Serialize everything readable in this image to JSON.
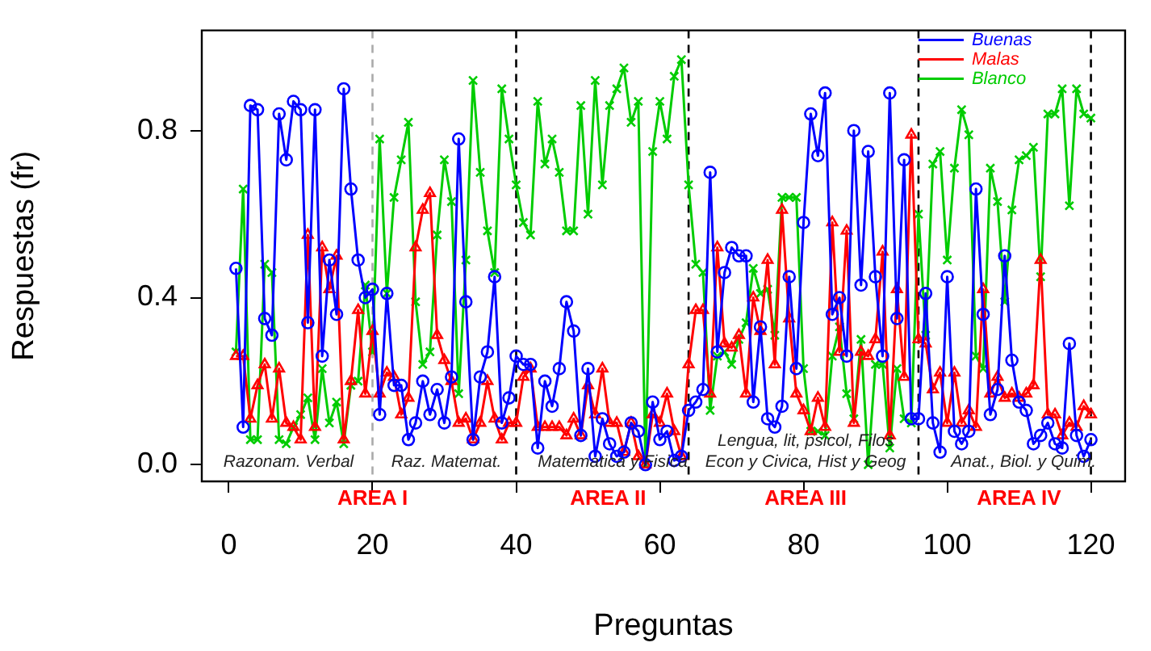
{
  "chart_data": {
    "type": "line",
    "xlabel": "Preguntas",
    "ylabel": "Respuestas (fr)",
    "x": [
      1,
      2,
      3,
      4,
      5,
      6,
      7,
      8,
      9,
      10,
      11,
      12,
      13,
      14,
      15,
      16,
      17,
      18,
      19,
      20,
      21,
      22,
      23,
      24,
      25,
      26,
      27,
      28,
      29,
      30,
      31,
      32,
      33,
      34,
      35,
      36,
      37,
      38,
      39,
      40,
      41,
      42,
      43,
      44,
      45,
      46,
      47,
      48,
      49,
      50,
      51,
      52,
      53,
      54,
      55,
      56,
      57,
      58,
      59,
      60,
      61,
      62,
      63,
      64,
      65,
      66,
      67,
      68,
      69,
      70,
      71,
      72,
      73,
      74,
      75,
      76,
      77,
      78,
      79,
      80,
      81,
      82,
      83,
      84,
      85,
      86,
      87,
      88,
      89,
      90,
      91,
      92,
      93,
      94,
      95,
      96,
      97,
      98,
      99,
      100,
      101,
      102,
      103,
      104,
      105,
      106,
      107,
      108,
      109,
      110,
      111,
      112,
      113,
      114,
      115,
      116,
      117,
      118,
      119,
      120
    ],
    "xlim": [
      -3.76,
      124.76
    ],
    "xticks": [
      0,
      20,
      40,
      60,
      80,
      100,
      120
    ],
    "ylim": [
      -0.04,
      1.04
    ],
    "yticks": [
      {
        "value": 0,
        "label": "0.0"
      },
      {
        "value": 0.4,
        "label": "0.4"
      },
      {
        "value": 0.8,
        "label": "0.8"
      }
    ],
    "grid": false,
    "legend": "top right",
    "line_style": "solid",
    "series": [
      {
        "name": "Buenas",
        "color": "#0000ff",
        "marker": "circle",
        "values": [
          0.47,
          0.09,
          0.86,
          0.85,
          0.35,
          0.31,
          0.84,
          0.73,
          0.87,
          0.85,
          0.34,
          0.85,
          0.26,
          0.49,
          0.36,
          0.9,
          0.66,
          0.49,
          0.4,
          0.42,
          0.12,
          0.41,
          0.19,
          0.19,
          0.06,
          0.1,
          0.2,
          0.12,
          0.18,
          0.1,
          0.21,
          0.78,
          0.39,
          0.06,
          0.21,
          0.27,
          0.45,
          0.1,
          0.16,
          0.26,
          0.24,
          0.24,
          0.04,
          0.2,
          0.14,
          0.23,
          0.39,
          0.32,
          0.07,
          0.23,
          0.02,
          0.11,
          0.05,
          0.02,
          0.03,
          0.1,
          0.08,
          0,
          0.15,
          0.06,
          0.08,
          0.01,
          0.02,
          0.13,
          0.15,
          0.18,
          0.7,
          0.27,
          0.46,
          0.52,
          0.5,
          0.5,
          0.15,
          0.33,
          0.11,
          0.09,
          0.14,
          0.45,
          0.23,
          0.58,
          0.84,
          0.74,
          0.89,
          0.36,
          0.4,
          0.26,
          0.8,
          0.43,
          0.75,
          0.45,
          0.26,
          0.89,
          0.35,
          0.73,
          0.11,
          0.11,
          0.41,
          0.1,
          0.03,
          0.45,
          0.08,
          0.05,
          0.08,
          0.66,
          0.36,
          0.12,
          0.18,
          0.5,
          0.25,
          0.15,
          0.13,
          0.05,
          0.07,
          0.1,
          0.05,
          0.04,
          0.29,
          0.07,
          0.02,
          0.06
        ]
      },
      {
        "name": "Malas",
        "color": "#ff0000",
        "marker": "triangle",
        "values": [
          0.26,
          0.26,
          0.11,
          0.19,
          0.24,
          0.11,
          0.23,
          0.1,
          0.09,
          0.06,
          0.55,
          0.09,
          0.52,
          0.42,
          0.5,
          0.06,
          0.2,
          0.37,
          0.17,
          0.32,
          0.17,
          0.22,
          0.21,
          0.12,
          0.16,
          0.52,
          0.61,
          0.65,
          0.31,
          0.25,
          0.2,
          0.1,
          0.11,
          0.06,
          0.1,
          0.2,
          0.11,
          0.06,
          0.1,
          0.1,
          0.21,
          0.23,
          0.09,
          0.09,
          0.09,
          0.09,
          0.07,
          0.11,
          0.07,
          0.19,
          0.12,
          0.23,
          0.1,
          0.1,
          0.03,
          0.1,
          0.02,
          0,
          0.12,
          0.1,
          0.17,
          0.08,
          0.02,
          0.24,
          0.37,
          0.37,
          0.17,
          0.52,
          0.29,
          0.28,
          0.31,
          0.17,
          0.4,
          0.32,
          0.49,
          0.24,
          0.61,
          0.35,
          0.17,
          0.13,
          0.08,
          0.16,
          0.09,
          0.58,
          0.27,
          0.56,
          0.1,
          0.27,
          0.26,
          0.3,
          0.51,
          0.07,
          0.42,
          0.21,
          0.79,
          0.3,
          0.29,
          0.18,
          0.22,
          0.1,
          0.22,
          0.1,
          0.13,
          0.09,
          0.42,
          0.17,
          0.21,
          0.16,
          0.17,
          0.16,
          0.17,
          0.19,
          0.49,
          0.12,
          0.12,
          0.07,
          0.1,
          0.09,
          0.14,
          0.12
        ]
      },
      {
        "name": "Blanco",
        "color": "#00cc00",
        "marker": "cross",
        "values": [
          0.27,
          0.66,
          0.06,
          0.06,
          0.48,
          0.46,
          0.06,
          0.05,
          0.09,
          0.12,
          0.16,
          0.06,
          0.23,
          0.1,
          0.15,
          0.05,
          0.19,
          0.2,
          0.43,
          0.27,
          0.78,
          0.41,
          0.64,
          0.73,
          0.82,
          0.39,
          0.24,
          0.27,
          0.55,
          0.73,
          0.63,
          0.17,
          0.49,
          0.92,
          0.7,
          0.56,
          0.46,
          0.9,
          0.78,
          0.67,
          0.58,
          0.55,
          0.87,
          0.72,
          0.78,
          0.7,
          0.56,
          0.56,
          0.86,
          0.6,
          0.92,
          0.67,
          0.86,
          0.9,
          0.95,
          0.82,
          0.87,
          0,
          0.75,
          0.87,
          0.78,
          0.93,
          0.97,
          0.67,
          0.48,
          0.46,
          0.13,
          0.26,
          0.27,
          0.24,
          0.3,
          0.34,
          0.47,
          0.41,
          0.42,
          0.31,
          0.64,
          0.64,
          0.64,
          0.23,
          0.08,
          0.08,
          0.07,
          0.26,
          0.33,
          0.17,
          0.11,
          0.3,
          0,
          0.24,
          0.24,
          0.04,
          0.23,
          0.11,
          0.1,
          0.6,
          0.31,
          0.72,
          0.75,
          0.49,
          0.71,
          0.85,
          0.79,
          0.26,
          0.23,
          0.71,
          0.63,
          0.39,
          0.61,
          0.73,
          0.74,
          0.76,
          0.45,
          0.84,
          0.84,
          0.9,
          0.62,
          0.9,
          0.84,
          0.83
        ]
      }
    ],
    "ref_lines": [
      {
        "axis": "x",
        "value": 20,
        "color": "#aaaaaa",
        "line_style": "dashed"
      },
      {
        "axis": "x",
        "value": 40,
        "color": "#000000",
        "line_style": "dashed"
      },
      {
        "axis": "x",
        "value": 64,
        "color": "#000000",
        "line_style": "dashed"
      },
      {
        "axis": "x",
        "value": 96,
        "color": "#000000",
        "line_style": "dashed"
      },
      {
        "axis": "x",
        "value": 120,
        "color": "#000000",
        "line_style": "dashed"
      }
    ],
    "annotations": [
      "Razonam. Verbal",
      "Raz. Matemat.",
      "Matematica y Fisica",
      "Lengua, lit, psicol, Filos",
      "Econ y Civica, Hist y Geog",
      "Anat., Biol. y Quim.",
      "AREA I",
      "AREA II",
      "AREA III",
      "AREA IV"
    ]
  }
}
